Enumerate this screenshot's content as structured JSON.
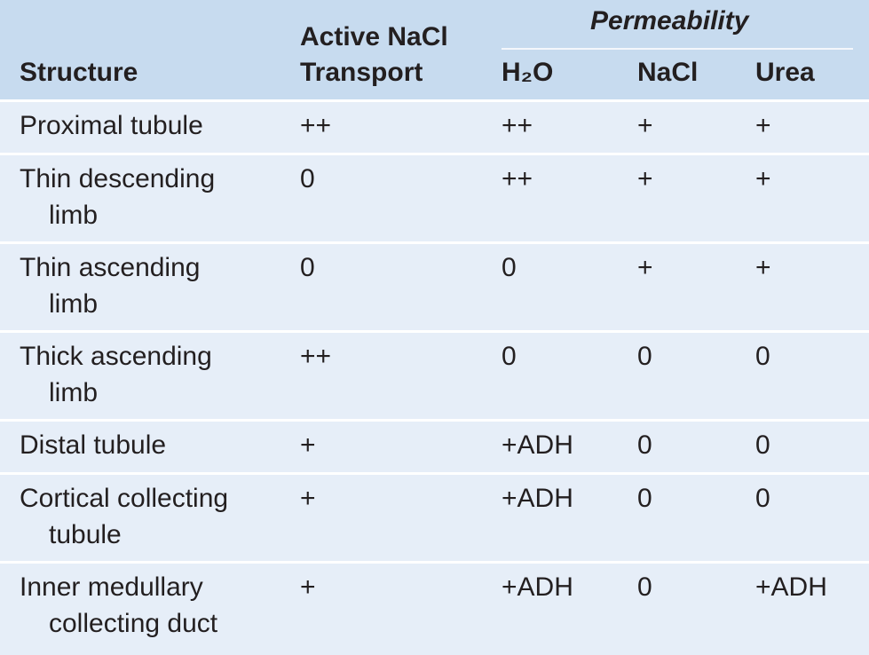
{
  "header": {
    "structure": "Structure",
    "active": [
      "Active NaCl",
      "Transport"
    ],
    "permeability": "Permeability",
    "columns": [
      "H₂O",
      "NaCl",
      "Urea"
    ]
  },
  "rows": [
    {
      "structure": [
        "Proximal tubule"
      ],
      "cells": [
        "++",
        "++",
        "+",
        "+"
      ]
    },
    {
      "structure": [
        "Thin descending",
        "limb"
      ],
      "cells": [
        "0",
        "++",
        "+",
        "+"
      ]
    },
    {
      "structure": [
        "Thin ascending",
        "limb"
      ],
      "cells": [
        "0",
        "0",
        "+",
        "+"
      ]
    },
    {
      "structure": [
        "Thick ascending",
        "limb"
      ],
      "cells": [
        "++",
        "0",
        "0",
        "0"
      ]
    },
    {
      "structure": [
        "Distal tubule"
      ],
      "cells": [
        "+",
        "+ADH",
        "0",
        "0"
      ]
    },
    {
      "structure": [
        "Cortical collecting",
        "tubule"
      ],
      "cells": [
        "+",
        "+ADH",
        "0",
        "0"
      ]
    },
    {
      "structure": [
        "Inner medullary",
        "collecting duct"
      ],
      "cells": [
        "+",
        "+ADH",
        "0",
        "+ADH"
      ]
    }
  ]
}
